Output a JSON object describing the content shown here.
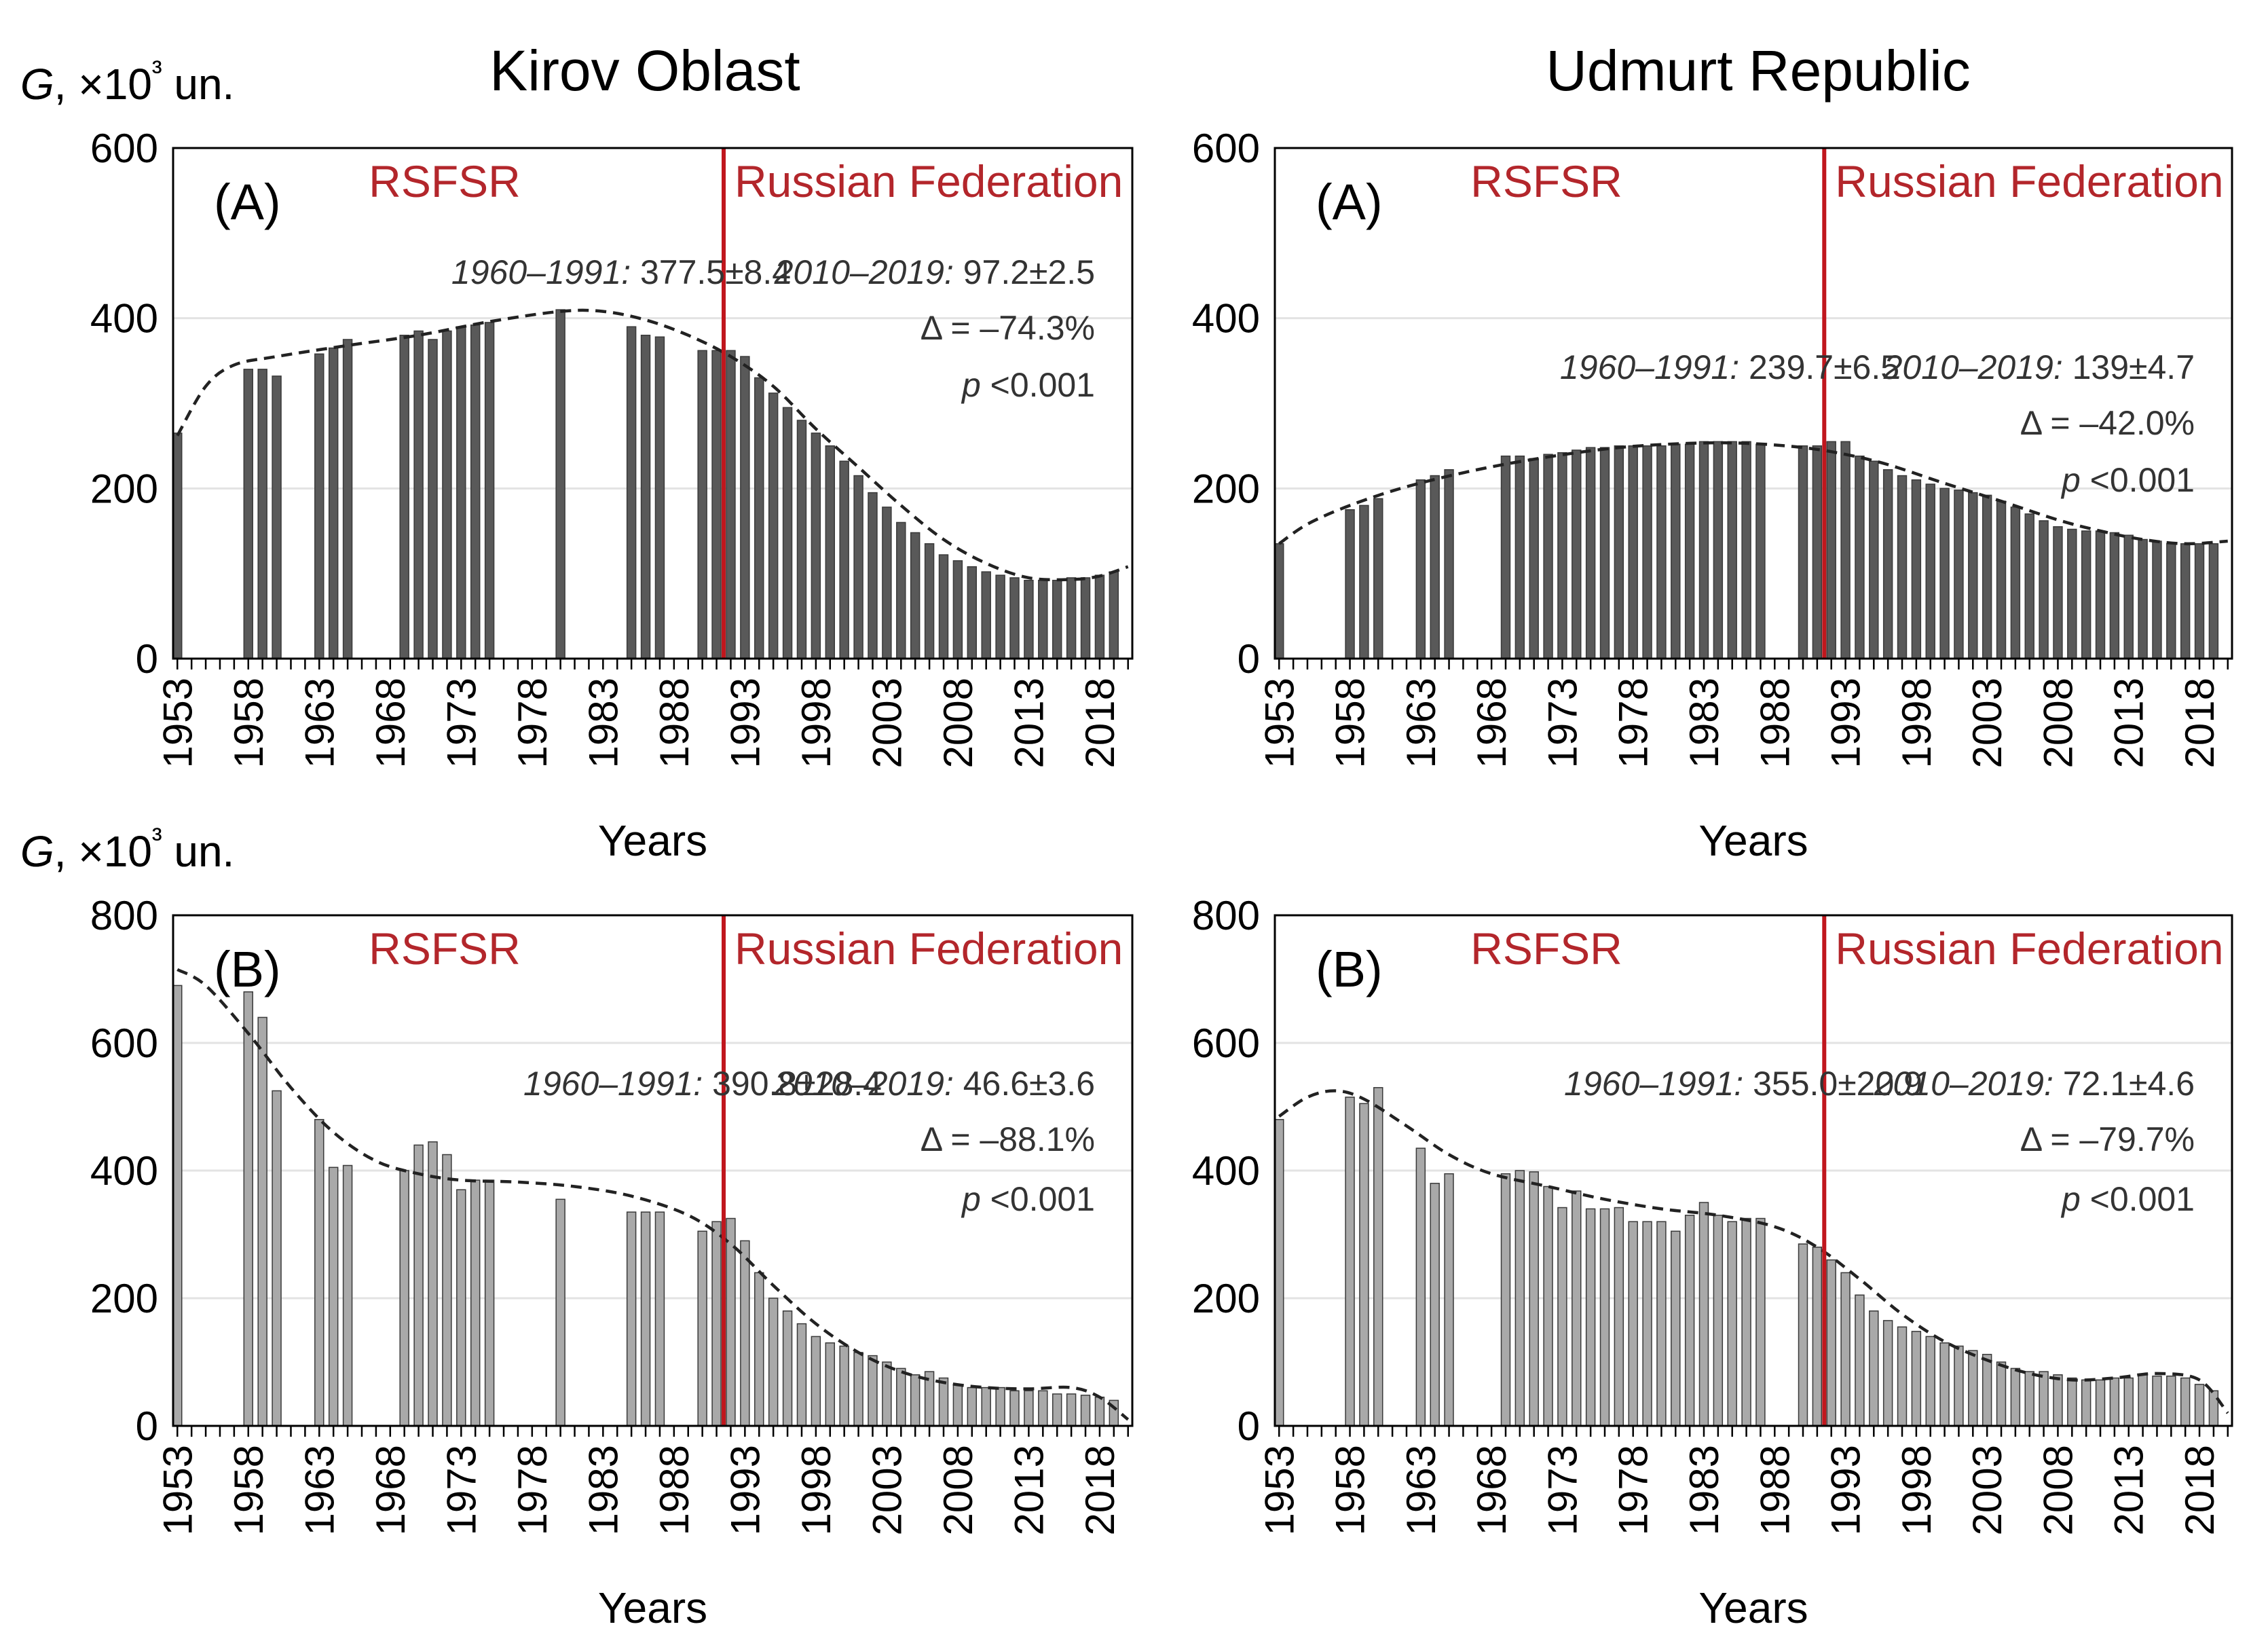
{
  "chart_data": [
    {
      "id": "kirov-a",
      "type": "bar",
      "column_title": "Kirov Oblast",
      "panel_letter": "(A)",
      "ylabel": "G, ×10³ un.",
      "xlabel": "Years",
      "ylim": [
        0,
        600
      ],
      "yticks": [
        0,
        200,
        400,
        600
      ],
      "xticks": [
        1953,
        1958,
        1963,
        1968,
        1973,
        1978,
        1983,
        1988,
        1993,
        1998,
        2003,
        2008,
        2013,
        2018
      ],
      "bar_color": "#595959",
      "divider_year": 1991.5,
      "periods": [
        "RSFSR",
        "Russian Federation"
      ],
      "years": [
        1953,
        1958,
        1959,
        1960,
        1963,
        1964,
        1965,
        1969,
        1970,
        1971,
        1972,
        1973,
        1974,
        1975,
        1980,
        1985,
        1986,
        1987,
        1990,
        1991,
        1992,
        1993,
        1994,
        1995,
        1996,
        1997,
        1998,
        1999,
        2000,
        2001,
        2002,
        2003,
        2004,
        2005,
        2006,
        2007,
        2008,
        2009,
        2010,
        2011,
        2012,
        2013,
        2014,
        2015,
        2016,
        2017,
        2018,
        2019
      ],
      "values": [
        265,
        340,
        340,
        332,
        358,
        365,
        375,
        380,
        385,
        375,
        385,
        390,
        392,
        395,
        410,
        390,
        380,
        378,
        362,
        362,
        362,
        355,
        330,
        312,
        295,
        280,
        265,
        250,
        232,
        215,
        195,
        178,
        160,
        148,
        135,
        122,
        115,
        108,
        102,
        98,
        95,
        92,
        92,
        92,
        95,
        95,
        98,
        102
      ],
      "trend": [
        [
          1953,
          262
        ],
        [
          1955,
          320
        ],
        [
          1957,
          345
        ],
        [
          1960,
          355
        ],
        [
          1965,
          368
        ],
        [
          1970,
          380
        ],
        [
          1975,
          396
        ],
        [
          1980,
          408
        ],
        [
          1983,
          408
        ],
        [
          1986,
          398
        ],
        [
          1989,
          380
        ],
        [
          1992,
          355
        ],
        [
          1995,
          320
        ],
        [
          1998,
          270
        ],
        [
          2001,
          225
        ],
        [
          2004,
          180
        ],
        [
          2007,
          140
        ],
        [
          2010,
          112
        ],
        [
          2013,
          95
        ],
        [
          2016,
          93
        ],
        [
          2018,
          97
        ],
        [
          2020,
          108
        ]
      ],
      "stats": {
        "left_period": "1960–1991:",
        "left_value": "377.5±8.4",
        "right_period": "2010–2019:",
        "right_value": "97.2±2.5",
        "delta": "Δ = –74.3%",
        "p_label": "p",
        "p_value": "<0.001"
      }
    },
    {
      "id": "udmurt-a",
      "type": "bar",
      "column_title": "Udmurt Republic",
      "panel_letter": "(A)",
      "ylabel": "G, ×10³ un.",
      "xlabel": "Years",
      "ylim": [
        0,
        600
      ],
      "yticks": [
        0,
        200,
        400,
        600
      ],
      "xticks": [
        1953,
        1958,
        1963,
        1968,
        1973,
        1978,
        1983,
        1988,
        1993,
        1998,
        2003,
        2008,
        2013,
        2018
      ],
      "bar_color": "#595959",
      "divider_year": 1991.5,
      "periods": [
        "RSFSR",
        "Russian Federation"
      ],
      "years": [
        1953,
        1958,
        1959,
        1960,
        1963,
        1964,
        1965,
        1969,
        1970,
        1971,
        1972,
        1973,
        1974,
        1975,
        1976,
        1977,
        1978,
        1979,
        1980,
        1981,
        1982,
        1983,
        1984,
        1985,
        1986,
        1987,
        1990,
        1991,
        1992,
        1993,
        1994,
        1995,
        1996,
        1997,
        1998,
        1999,
        2000,
        2001,
        2002,
        2003,
        2004,
        2005,
        2006,
        2007,
        2008,
        2009,
        2010,
        2011,
        2012,
        2013,
        2014,
        2015,
        2016,
        2017,
        2018,
        2019
      ],
      "values": [
        135,
        175,
        180,
        188,
        210,
        215,
        222,
        238,
        238,
        235,
        240,
        242,
        245,
        248,
        248,
        250,
        250,
        250,
        250,
        252,
        252,
        255,
        255,
        255,
        255,
        252,
        250,
        250,
        255,
        255,
        238,
        232,
        222,
        215,
        210,
        205,
        200,
        198,
        195,
        192,
        185,
        178,
        170,
        162,
        155,
        152,
        150,
        150,
        148,
        145,
        140,
        138,
        135,
        135,
        135,
        135
      ],
      "trend": [
        [
          1953,
          135
        ],
        [
          1955,
          158
        ],
        [
          1958,
          180
        ],
        [
          1962,
          202
        ],
        [
          1967,
          222
        ],
        [
          1972,
          237
        ],
        [
          1977,
          248
        ],
        [
          1982,
          253
        ],
        [
          1986,
          253
        ],
        [
          1990,
          248
        ],
        [
          1993,
          240
        ],
        [
          1996,
          228
        ],
        [
          2000,
          206
        ],
        [
          2004,
          185
        ],
        [
          2008,
          163
        ],
        [
          2011,
          150
        ],
        [
          2014,
          140
        ],
        [
          2017,
          135
        ],
        [
          2020,
          138
        ]
      ],
      "stats": {
        "left_period": "1960–1991:",
        "left_value": "239.7±6.5",
        "right_period": "2010–2019:",
        "right_value": "139±4.7",
        "delta": "Δ = –42.0%",
        "p_label": "p",
        "p_value": "<0.001"
      }
    },
    {
      "id": "kirov-b",
      "type": "bar",
      "panel_letter": "(B)",
      "ylabel": "G, ×10³ un.",
      "xlabel": "Years",
      "ylim": [
        0,
        800
      ],
      "yticks": [
        0,
        200,
        400,
        600,
        800
      ],
      "xticks": [
        1953,
        1958,
        1963,
        1968,
        1973,
        1978,
        1983,
        1988,
        1993,
        1998,
        2003,
        2008,
        2013,
        2018
      ],
      "bar_color": "#a9a9a9",
      "divider_year": 1991.5,
      "periods": [
        "RSFSR",
        "Russian Federation"
      ],
      "years": [
        1953,
        1958,
        1959,
        1960,
        1963,
        1964,
        1965,
        1969,
        1970,
        1971,
        1972,
        1973,
        1974,
        1975,
        1980,
        1985,
        1986,
        1987,
        1990,
        1991,
        1992,
        1993,
        1994,
        1995,
        1996,
        1997,
        1998,
        1999,
        2000,
        2001,
        2002,
        2003,
        2004,
        2005,
        2006,
        2007,
        2008,
        2009,
        2010,
        2011,
        2012,
        2013,
        2014,
        2015,
        2016,
        2017,
        2018,
        2019
      ],
      "values": [
        690,
        680,
        640,
        525,
        480,
        405,
        408,
        400,
        440,
        445,
        425,
        370,
        385,
        385,
        355,
        335,
        335,
        335,
        305,
        320,
        325,
        290,
        240,
        200,
        180,
        160,
        140,
        130,
        125,
        115,
        110,
        100,
        90,
        80,
        85,
        75,
        65,
        60,
        60,
        60,
        55,
        55,
        55,
        50,
        50,
        48,
        45,
        40
      ],
      "trend": [
        [
          1953,
          715
        ],
        [
          1955,
          690
        ],
        [
          1958,
          615
        ],
        [
          1961,
          530
        ],
        [
          1964,
          460
        ],
        [
          1967,
          415
        ],
        [
          1970,
          395
        ],
        [
          1973,
          385
        ],
        [
          1977,
          382
        ],
        [
          1981,
          375
        ],
        [
          1985,
          360
        ],
        [
          1989,
          330
        ],
        [
          1992,
          285
        ],
        [
          1995,
          220
        ],
        [
          1998,
          160
        ],
        [
          2001,
          115
        ],
        [
          2004,
          85
        ],
        [
          2007,
          68
        ],
        [
          2010,
          60
        ],
        [
          2013,
          58
        ],
        [
          2016,
          60
        ],
        [
          2018,
          45
        ],
        [
          2020,
          10
        ]
      ],
      "stats": {
        "left_period": "1960–1991:",
        "left_value": "390.8±28.4",
        "right_period": "2010–2019:",
        "right_value": "46.6±3.6",
        "delta": "Δ = –88.1%",
        "p_label": "p",
        "p_value": "<0.001"
      }
    },
    {
      "id": "udmurt-b",
      "type": "bar",
      "panel_letter": "(B)",
      "ylabel": "G, ×10³ un.",
      "xlabel": "Years",
      "ylim": [
        0,
        800
      ],
      "yticks": [
        0,
        200,
        400,
        600,
        800
      ],
      "xticks": [
        1953,
        1958,
        1963,
        1968,
        1973,
        1978,
        1983,
        1988,
        1993,
        1998,
        2003,
        2008,
        2013,
        2018
      ],
      "bar_color": "#a9a9a9",
      "divider_year": 1991.5,
      "periods": [
        "RSFSR",
        "Russian Federation"
      ],
      "years": [
        1953,
        1958,
        1959,
        1960,
        1963,
        1964,
        1965,
        1969,
        1970,
        1971,
        1972,
        1973,
        1974,
        1975,
        1976,
        1977,
        1978,
        1979,
        1980,
        1981,
        1982,
        1983,
        1984,
        1985,
        1986,
        1987,
        1990,
        1991,
        1992,
        1993,
        1994,
        1995,
        1996,
        1997,
        1998,
        1999,
        2000,
        2001,
        2002,
        2003,
        2004,
        2005,
        2006,
        2007,
        2008,
        2009,
        2010,
        2011,
        2012,
        2013,
        2014,
        2015,
        2016,
        2017,
        2018,
        2019
      ],
      "values": [
        480,
        515,
        505,
        530,
        435,
        380,
        395,
        395,
        400,
        398,
        375,
        342,
        368,
        340,
        340,
        342,
        320,
        320,
        320,
        305,
        330,
        350,
        330,
        320,
        325,
        325,
        285,
        280,
        260,
        240,
        205,
        180,
        165,
        155,
        148,
        140,
        130,
        125,
        118,
        112,
        100,
        90,
        85,
        85,
        80,
        75,
        72,
        72,
        75,
        75,
        80,
        78,
        78,
        75,
        65,
        55
      ],
      "trend": [
        [
          1953,
          485
        ],
        [
          1955,
          515
        ],
        [
          1957,
          525
        ],
        [
          1959,
          512
        ],
        [
          1962,
          470
        ],
        [
          1965,
          425
        ],
        [
          1968,
          395
        ],
        [
          1972,
          375
        ],
        [
          1976,
          355
        ],
        [
          1980,
          340
        ],
        [
          1984,
          330
        ],
        [
          1988,
          312
        ],
        [
          1991,
          280
        ],
        [
          1994,
          230
        ],
        [
          1997,
          175
        ],
        [
          2000,
          132
        ],
        [
          2003,
          103
        ],
        [
          2006,
          82
        ],
        [
          2009,
          72
        ],
        [
          2012,
          75
        ],
        [
          2015,
          82
        ],
        [
          2018,
          72
        ],
        [
          2020,
          20
        ]
      ],
      "stats": {
        "left_period": "1960–1991:",
        "left_value": "355.0±20.9",
        "right_period": "2010–2019:",
        "right_value": "72.1±4.6",
        "delta": "Δ = –79.7%",
        "p_label": "p",
        "p_value": "<0.001"
      }
    }
  ],
  "colors": {
    "divider": "#c0161d",
    "period_text": "#b3262b",
    "grid": "#e3e3e3",
    "trend": "#222222"
  }
}
